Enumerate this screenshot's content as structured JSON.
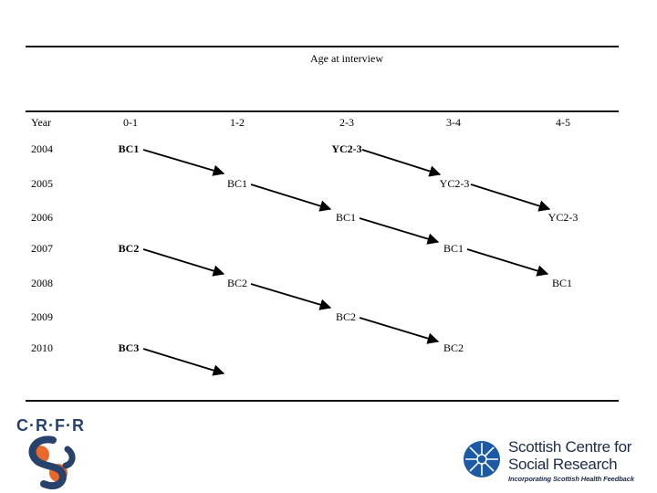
{
  "header": {
    "title": "Age at interview"
  },
  "columns": {
    "year": "Year",
    "age_0_1": "0-1",
    "age_1_2": "1-2",
    "age_2_3": "2-3",
    "age_3_4": "3-4",
    "age_4_5": "4-5"
  },
  "rows": [
    {
      "year": "2004",
      "cells": {
        "age_0_1": "BC1",
        "age_2_3": "YC2-3"
      }
    },
    {
      "year": "2005",
      "cells": {
        "age_1_2": "BC1",
        "age_3_4": "YC2-3"
      }
    },
    {
      "year": "2006",
      "cells": {
        "age_2_3": "BC1",
        "age_4_5": "YC2-3"
      }
    },
    {
      "year": "2007",
      "cells": {
        "age_0_1": "BC2",
        "age_3_4": "BC1"
      }
    },
    {
      "year": "2008",
      "cells": {
        "age_1_2": "BC2",
        "age_4_5": "BC1"
      }
    },
    {
      "year": "2009",
      "cells": {
        "age_2_3": "BC2"
      }
    },
    {
      "year": "2010",
      "cells": {
        "age_0_1": "BC3",
        "age_3_4": "BC2"
      }
    }
  ],
  "logos": {
    "crfr": {
      "text": "C·R·F·R"
    },
    "sccsr": {
      "line1": "Scottish Centre for",
      "line2": "Social Research",
      "subline": "Incorporating Scottish Health Feedback"
    }
  },
  "colors": {
    "ink": "#000000",
    "crfr_blue": "#27426b",
    "crfr_orange": "#e8692a",
    "sccsr_blue": "#1c5aa6"
  }
}
